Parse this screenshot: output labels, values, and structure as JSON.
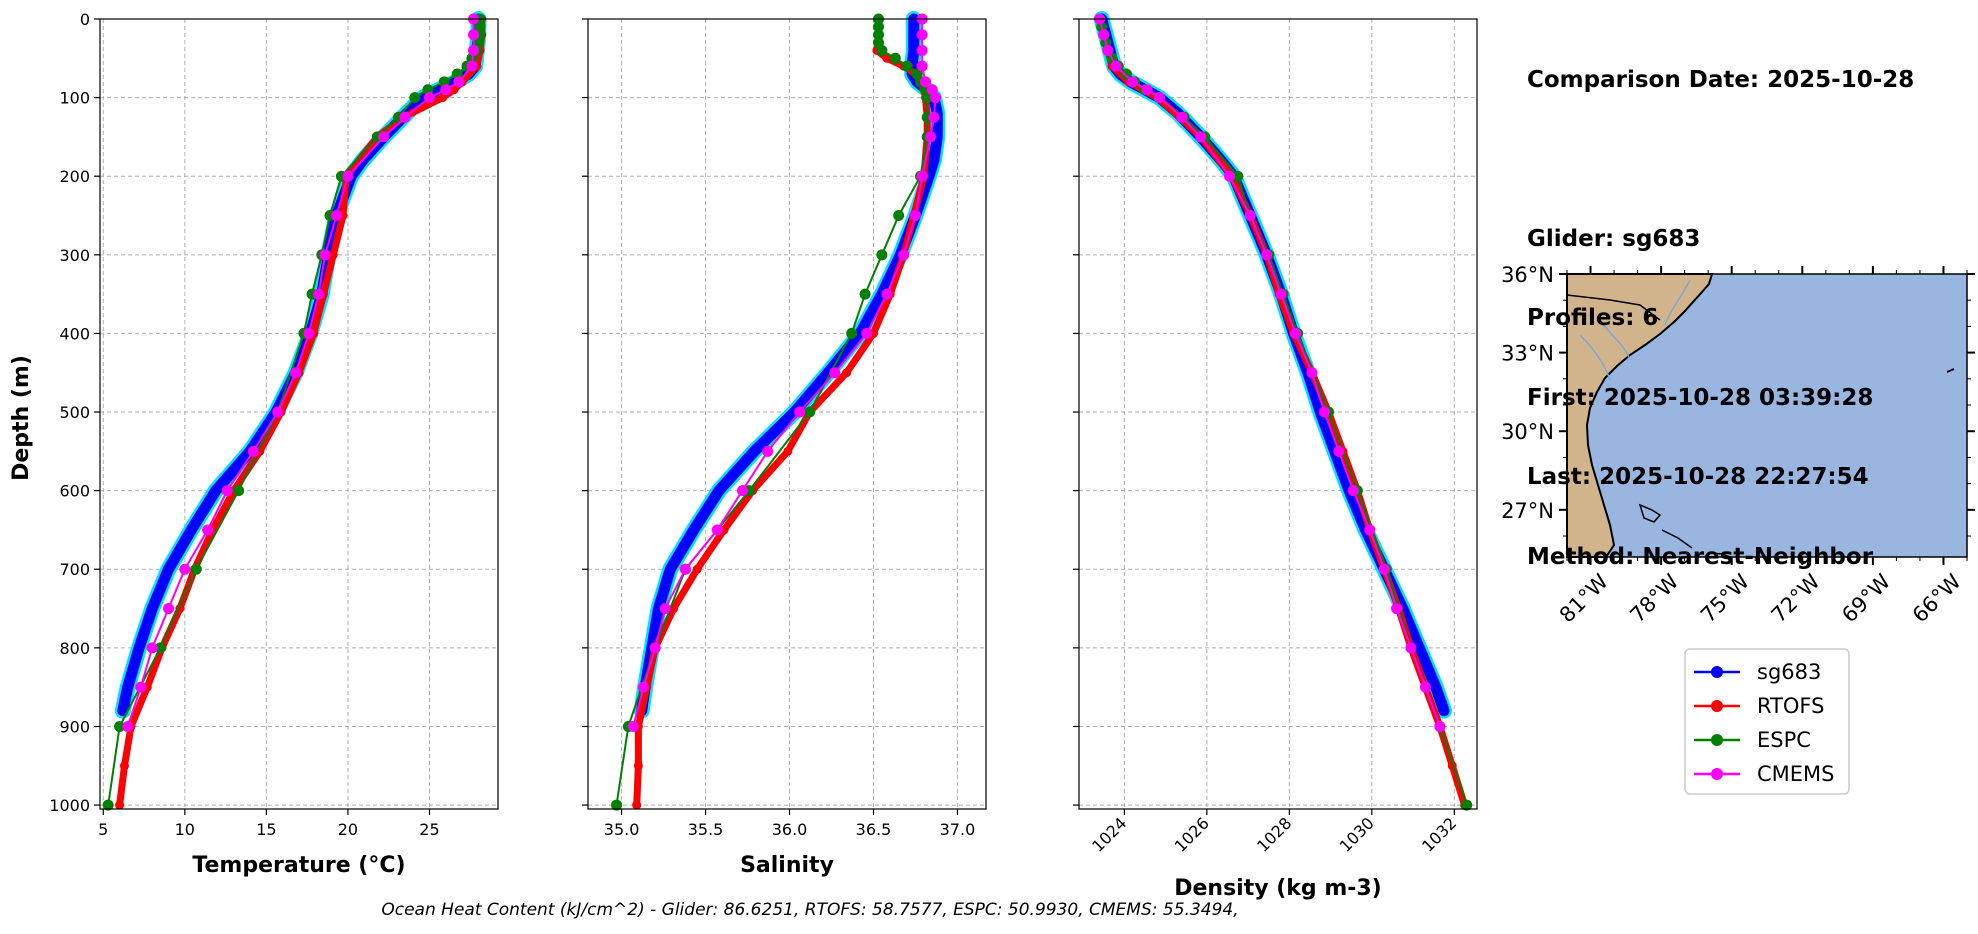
{
  "info": {
    "comparison_date": "Comparison Date: 2025-10-28",
    "glider": "Glider: sg683",
    "profiles": "Profiles: 6",
    "first": "First: 2025-10-28 03:39:28",
    "last": "Last: 2025-10-28 22:27:54",
    "method": "Method: Nearest-Neighbor"
  },
  "footer": "Ocean Heat Content (kJ/cm^2) - Glider: 86.6251,  RTOFS: 58.7577,  ESPC: 50.9930,  CMEMS: 55.3494,",
  "legend": [
    "sg683",
    "RTOFS",
    "ESPC",
    "CMEMS"
  ],
  "colors": {
    "sg683": "#0000ff",
    "sg683_spread": "#00e5ff",
    "RTOFS": "#ff0000",
    "ESPC": "#008000",
    "CMEMS": "#ff00ff",
    "land": "#d2b48c",
    "ocean": "#98b6e0",
    "grid": "#b0b0b0"
  },
  "chart_data": [
    {
      "type": "line",
      "xlabel": "Temperature (°C)",
      "ylabel": "Depth (m)",
      "xlim": [
        4.8,
        29.2
      ],
      "ylim": [
        1005,
        0
      ],
      "xticks": [
        5,
        10,
        15,
        20,
        25
      ],
      "xtick_labels": [
        "5",
        "10",
        "15",
        "20",
        "25"
      ],
      "yticks": [
        0,
        100,
        200,
        300,
        400,
        500,
        600,
        700,
        800,
        900,
        1000
      ],
      "ytick_labels": [
        "0",
        "100",
        "200",
        "300",
        "400",
        "500",
        "600",
        "700",
        "800",
        "900",
        "1000"
      ],
      "series": [
        {
          "name": "sg683",
          "depth": [
            0,
            20,
            40,
            60,
            70,
            80,
            90,
            100,
            120,
            150,
            180,
            200,
            250,
            300,
            350,
            400,
            450,
            500,
            550,
            600,
            650,
            700,
            750,
            800,
            850,
            880
          ],
          "values": [
            28.0,
            28.0,
            27.9,
            27.8,
            27.4,
            26.6,
            25.6,
            24.6,
            23.6,
            22.2,
            20.9,
            20.2,
            19.3,
            18.8,
            18.4,
            17.7,
            16.8,
            15.6,
            14.0,
            11.9,
            10.4,
            9.0,
            8.0,
            7.2,
            6.5,
            6.2
          ]
        },
        {
          "name": "RTOFS",
          "depth": [
            0,
            20,
            40,
            60,
            80,
            90,
            100,
            125,
            150,
            200,
            250,
            300,
            350,
            400,
            450,
            500,
            550,
            600,
            650,
            700,
            750,
            800,
            850,
            900,
            950,
            1000
          ],
          "values": [
            28.2,
            28.2,
            28.1,
            27.9,
            27.0,
            26.5,
            25.8,
            23.4,
            21.8,
            19.9,
            19.7,
            19.1,
            18.5,
            17.9,
            17.0,
            15.9,
            14.6,
            13.0,
            11.7,
            10.6,
            9.7,
            8.6,
            7.7,
            6.7,
            6.3,
            6.0
          ]
        },
        {
          "name": "ESPC",
          "depth": [
            0,
            10,
            20,
            30,
            40,
            50,
            60,
            70,
            80,
            90,
            100,
            125,
            150,
            200,
            250,
            300,
            350,
            400,
            500,
            600,
            700,
            800,
            900,
            1000
          ],
          "values": [
            28.1,
            28.1,
            28.1,
            28.0,
            27.9,
            27.6,
            27.3,
            26.7,
            25.9,
            24.9,
            24.1,
            23.1,
            21.8,
            19.6,
            18.9,
            18.4,
            17.8,
            17.3,
            15.7,
            13.3,
            10.7,
            8.5,
            6.0,
            5.3
          ]
        },
        {
          "name": "CMEMS",
          "depth": [
            0,
            20,
            40,
            60,
            80,
            90,
            100,
            125,
            150,
            200,
            250,
            300,
            350,
            400,
            450,
            500,
            550,
            600,
            650,
            700,
            750,
            800,
            850,
            900
          ],
          "values": [
            27.7,
            27.7,
            27.7,
            27.6,
            26.8,
            26.0,
            25.0,
            23.5,
            22.2,
            20.0,
            19.3,
            18.6,
            18.2,
            17.6,
            16.8,
            15.7,
            14.2,
            12.6,
            11.4,
            10.0,
            9.0,
            8.0,
            7.3,
            6.5
          ]
        }
      ]
    },
    {
      "type": "line",
      "xlabel": "Salinity",
      "ylabel": "",
      "xlim": [
        34.8,
        37.17
      ],
      "ylim": [
        1005,
        0
      ],
      "xticks": [
        35.0,
        35.5,
        36.0,
        36.5,
        37.0
      ],
      "xtick_labels": [
        "35.0",
        "35.5",
        "36.0",
        "36.5",
        "37.0"
      ],
      "series": [
        {
          "name": "sg683",
          "depth": [
            0,
            20,
            40,
            60,
            70,
            80,
            90,
            100,
            120,
            150,
            180,
            200,
            250,
            300,
            350,
            400,
            450,
            500,
            550,
            600,
            650,
            700,
            750,
            800,
            850,
            880
          ],
          "values": [
            36.74,
            36.74,
            36.74,
            36.73,
            36.73,
            36.76,
            36.82,
            36.86,
            36.88,
            36.88,
            36.86,
            36.83,
            36.75,
            36.66,
            36.55,
            36.42,
            36.23,
            36.03,
            35.79,
            35.58,
            35.43,
            35.29,
            35.22,
            35.18,
            35.14,
            35.12
          ]
        },
        {
          "name": "RTOFS",
          "depth": [
            0,
            20,
            40,
            50,
            60,
            70,
            80,
            90,
            100,
            125,
            150,
            200,
            250,
            300,
            350,
            400,
            450,
            500,
            550,
            600,
            650,
            700,
            750,
            800,
            850,
            900,
            950,
            1000
          ],
          "values": [
            36.53,
            36.53,
            36.52,
            36.58,
            36.68,
            36.75,
            36.78,
            36.8,
            36.81,
            36.82,
            36.82,
            36.8,
            36.74,
            36.68,
            36.6,
            36.5,
            36.34,
            36.12,
            35.99,
            35.78,
            35.61,
            35.45,
            35.31,
            35.2,
            35.15,
            35.1,
            35.1,
            35.09
          ]
        },
        {
          "name": "ESPC",
          "depth": [
            0,
            10,
            20,
            30,
            40,
            50,
            60,
            70,
            80,
            90,
            100,
            125,
            150,
            200,
            250,
            300,
            350,
            400,
            500,
            600,
            700,
            800,
            900,
            1000
          ],
          "values": [
            36.53,
            36.53,
            36.53,
            36.53,
            36.55,
            36.63,
            36.7,
            36.76,
            36.78,
            36.81,
            36.82,
            36.82,
            36.82,
            36.78,
            36.65,
            36.55,
            36.45,
            36.37,
            36.12,
            35.76,
            35.38,
            35.2,
            35.04,
            34.97
          ]
        },
        {
          "name": "CMEMS",
          "depth": [
            0,
            20,
            40,
            60,
            80,
            90,
            100,
            125,
            150,
            200,
            250,
            300,
            350,
            400,
            450,
            500,
            550,
            600,
            650,
            700,
            750,
            800,
            850,
            900
          ],
          "values": [
            36.79,
            36.79,
            36.79,
            36.79,
            36.81,
            36.85,
            36.87,
            36.86,
            36.84,
            36.79,
            36.75,
            36.68,
            36.58,
            36.46,
            36.27,
            36.06,
            35.87,
            35.72,
            35.57,
            35.38,
            35.26,
            35.2,
            35.13,
            35.07
          ]
        }
      ]
    },
    {
      "type": "line",
      "xlabel": "Density (kg m-3)",
      "ylabel": "",
      "xlim": [
        1022.9,
        1032.55
      ],
      "ylim": [
        1005,
        0
      ],
      "xticks": [
        1024,
        1026,
        1028,
        1030,
        1032
      ],
      "xtick_labels": [
        "1024",
        "1026",
        "1028",
        "1030",
        "1032"
      ],
      "series": [
        {
          "name": "sg683",
          "depth": [
            0,
            20,
            40,
            60,
            70,
            80,
            90,
            100,
            120,
            150,
            180,
            200,
            250,
            300,
            350,
            400,
            450,
            500,
            550,
            600,
            650,
            700,
            750,
            800,
            850,
            880
          ],
          "values": [
            1023.45,
            1023.55,
            1023.65,
            1023.75,
            1023.9,
            1024.15,
            1024.5,
            1024.85,
            1025.3,
            1025.85,
            1026.35,
            1026.65,
            1027.05,
            1027.45,
            1027.8,
            1028.1,
            1028.45,
            1028.75,
            1029.1,
            1029.45,
            1029.85,
            1030.3,
            1030.75,
            1031.15,
            1031.55,
            1031.75
          ]
        },
        {
          "name": "RTOFS",
          "depth": [
            0,
            20,
            40,
            60,
            80,
            90,
            100,
            125,
            150,
            200,
            250,
            300,
            350,
            400,
            450,
            500,
            550,
            600,
            650,
            700,
            750,
            800,
            850,
            900,
            950,
            1000
          ],
          "values": [
            1023.4,
            1023.5,
            1023.6,
            1023.7,
            1024.1,
            1024.45,
            1024.8,
            1025.35,
            1025.85,
            1026.6,
            1027.05,
            1027.45,
            1027.75,
            1028.1,
            1028.55,
            1028.95,
            1029.3,
            1029.65,
            1029.95,
            1030.3,
            1030.65,
            1030.95,
            1031.3,
            1031.65,
            1031.95,
            1032.25
          ]
        },
        {
          "name": "ESPC",
          "depth": [
            0,
            10,
            20,
            30,
            40,
            50,
            60,
            70,
            80,
            90,
            100,
            125,
            150,
            200,
            250,
            300,
            350,
            400,
            500,
            600,
            700,
            800,
            900,
            1000
          ],
          "values": [
            1023.4,
            1023.45,
            1023.5,
            1023.55,
            1023.6,
            1023.7,
            1023.85,
            1024.05,
            1024.25,
            1024.5,
            1024.85,
            1025.45,
            1025.95,
            1026.75,
            1027.05,
            1027.5,
            1027.85,
            1028.2,
            1028.95,
            1029.65,
            1030.35,
            1030.95,
            1031.65,
            1032.3
          ]
        },
        {
          "name": "CMEMS",
          "depth": [
            0,
            20,
            40,
            60,
            80,
            90,
            100,
            125,
            150,
            200,
            250,
            300,
            350,
            400,
            450,
            500,
            550,
            600,
            650,
            700,
            750,
            800,
            850,
            900
          ],
          "values": [
            1023.4,
            1023.5,
            1023.6,
            1023.8,
            1024.2,
            1024.55,
            1024.85,
            1025.4,
            1025.85,
            1026.55,
            1027.05,
            1027.45,
            1027.8,
            1028.15,
            1028.55,
            1028.85,
            1029.2,
            1029.55,
            1029.95,
            1030.3,
            1030.6,
            1030.95,
            1031.3,
            1031.65
          ]
        }
      ]
    }
  ],
  "map": {
    "lon_range": [
      -82.0,
      -65.0
    ],
    "lat_range": [
      25.2,
      36.0
    ],
    "lon_ticks": [
      -81,
      -78,
      -75,
      -72,
      -69,
      -66
    ],
    "lon_labels": [
      "81°W",
      "78°W",
      "75°W",
      "72°W",
      "69°W",
      "66°W"
    ],
    "lat_ticks": [
      36,
      33,
      30,
      27
    ],
    "lat_labels": [
      "36°N",
      "33°N",
      "30°N",
      "27°N"
    ]
  }
}
